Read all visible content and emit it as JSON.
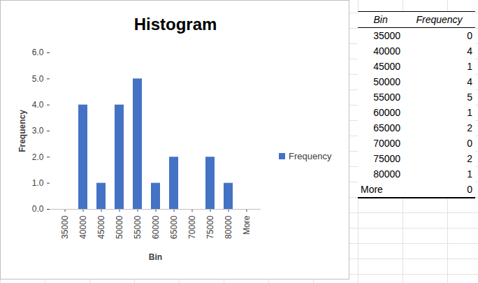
{
  "chart_data": {
    "type": "bar",
    "title": "Histogram",
    "x_label": "Bin",
    "y_label": "Frequency",
    "categories": [
      "35000",
      "40000",
      "45000",
      "50000",
      "55000",
      "60000",
      "65000",
      "70000",
      "75000",
      "80000",
      "More"
    ],
    "series": [
      {
        "name": "Frequency",
        "color": "#4472c4",
        "values": [
          0,
          4,
          1,
          4,
          5,
          1,
          2,
          0,
          2,
          1,
          0
        ]
      }
    ],
    "ylim": [
      0,
      6
    ],
    "yticks": [
      0,
      1,
      2,
      3,
      4,
      5,
      6
    ],
    "grid": false,
    "legend": "right"
  },
  "table": {
    "header": [
      "Bin",
      "Frequency"
    ],
    "rows": [
      [
        35000,
        0
      ],
      [
        40000,
        4
      ],
      [
        45000,
        1
      ],
      [
        50000,
        4
      ],
      [
        55000,
        5
      ],
      [
        60000,
        1
      ],
      [
        65000,
        2
      ],
      [
        70000,
        0
      ],
      [
        75000,
        2
      ],
      [
        80000,
        1
      ],
      [
        "More",
        0
      ]
    ]
  }
}
